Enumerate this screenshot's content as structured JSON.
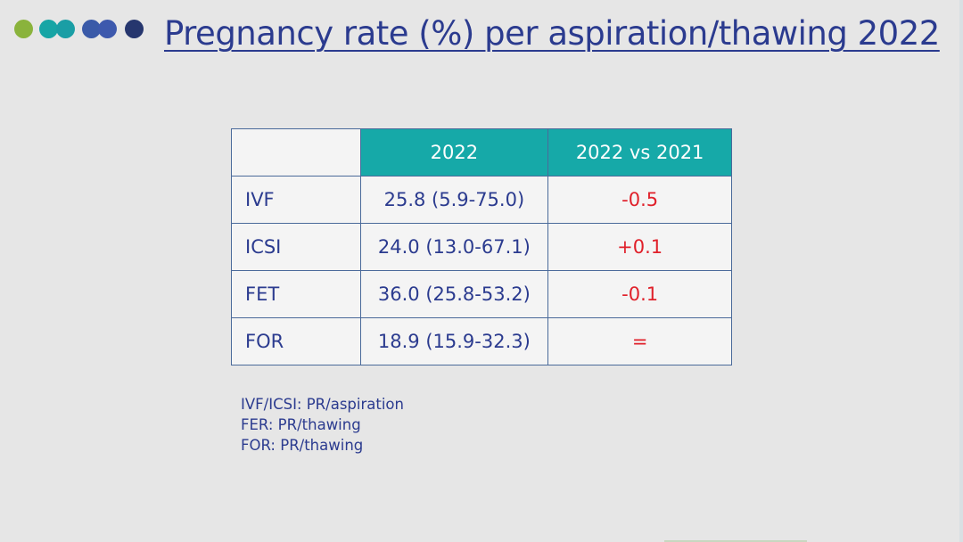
{
  "slide": {
    "title": "Pregnancy rate (%) per aspiration/thawing 2022",
    "dots": [
      {
        "name": "green-dot",
        "color": "#8ab33c"
      },
      {
        "name": "teal-dot-1",
        "color": "#17a5a5"
      },
      {
        "name": "teal-dot-2",
        "color": "#1a9ea5"
      },
      {
        "name": "blue-dot-1",
        "color": "#3a5aa8"
      },
      {
        "name": "blue-dot-2",
        "color": "#3d59ad"
      },
      {
        "name": "navy-dot",
        "color": "#26366e"
      }
    ],
    "table": {
      "headers": [
        "",
        "2022",
        "2022 vs 2021"
      ],
      "rows": [
        {
          "label": "IVF",
          "value": "25.8 (5.9-75.0)",
          "diff": "-0.5"
        },
        {
          "label": "ICSI",
          "value": "24.0 (13.0-67.1)",
          "diff": "+0.1"
        },
        {
          "label": "FET",
          "value": "36.0 (25.8-53.2)",
          "diff": "-0.1"
        },
        {
          "label": "FOR",
          "value": "18.9 (15.9-32.3)",
          "diff": "="
        }
      ]
    },
    "footnotes": [
      "IVF/ICSI: PR/aspiration",
      "FER: PR/thawing",
      "FOR: PR/thawing"
    ]
  }
}
